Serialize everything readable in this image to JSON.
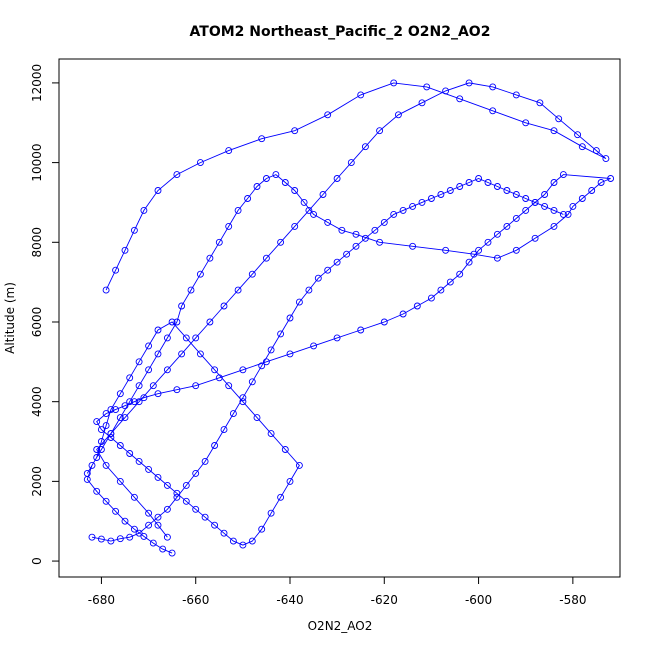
{
  "chart_data": {
    "type": "line",
    "title": "ATOM2 Northeast_Pacific_2 O2N2_AO2",
    "xlabel": "O2N2_AO2",
    "ylabel": "Altitude (m)",
    "xlim": [
      -689,
      -570
    ],
    "ylim": [
      -400,
      12600
    ],
    "xticks": [
      -680,
      -660,
      -640,
      -620,
      -600,
      -580
    ],
    "yticks": [
      0,
      2000,
      4000,
      6000,
      8000,
      10000,
      12000
    ],
    "grid": false,
    "legend": "none",
    "colors": {
      "series": "#0000ff",
      "axis": "#000000",
      "background": "#ffffff"
    },
    "markers": "open-circle",
    "series": [
      {
        "x": [
          -665,
          -667,
          -669,
          -671,
          -673,
          -675,
          -677,
          -679,
          -681,
          -683,
          -682,
          -680,
          -678,
          -676,
          -674,
          -672,
          -670,
          -668,
          -666,
          -664,
          -663,
          -661,
          -659,
          -657,
          -655,
          -653,
          -651,
          -649,
          -647,
          -645,
          -643,
          -641,
          -639,
          -637,
          -635,
          -632,
          -629,
          -626,
          -621,
          -614,
          -607,
          -601,
          -596,
          -592,
          -588,
          -584,
          -581,
          -580,
          -578,
          -576,
          -574,
          -572,
          -582,
          -584,
          -586,
          -588,
          -590,
          -592,
          -594,
          -596,
          -598,
          -600,
          -602,
          -604,
          -606,
          -608,
          -610,
          -613,
          -616,
          -620,
          -625,
          -630,
          -635,
          -640,
          -645,
          -650,
          -655,
          -660,
          -664,
          -668,
          -671,
          -673,
          -675,
          -677,
          -679,
          -681,
          -680,
          -678,
          -676,
          -674,
          -672,
          -670,
          -668,
          -666,
          -664,
          -662,
          -660,
          -658,
          -656,
          -654,
          -652,
          -650,
          -648,
          -646,
          -644,
          -642,
          -640,
          -638,
          -641,
          -644,
          -647,
          -650,
          -653,
          -656,
          -659,
          -662,
          -665,
          -668,
          -670,
          -672,
          -674,
          -676,
          -678,
          -679,
          -680,
          -681,
          -683
        ],
        "y": [
          200,
          300,
          450,
          620,
          800,
          1000,
          1250,
          1500,
          1750,
          2050,
          2400,
          2800,
          3200,
          3600,
          4000,
          4400,
          4800,
          5200,
          5600,
          6000,
          6400,
          6800,
          7200,
          7600,
          8000,
          8400,
          8800,
          9100,
          9400,
          9600,
          9700,
          9500,
          9300,
          9000,
          8700,
          8500,
          8300,
          8200,
          8000,
          7900,
          7800,
          7700,
          7600,
          7800,
          8100,
          8400,
          8700,
          8900,
          9100,
          9300,
          9500,
          9600,
          9700,
          9500,
          9200,
          9000,
          8800,
          8600,
          8400,
          8200,
          8000,
          7800,
          7500,
          7200,
          7000,
          6800,
          6600,
          6400,
          6200,
          6000,
          5800,
          5600,
          5400,
          5200,
          5000,
          4800,
          4600,
          4400,
          4300,
          4200,
          4100,
          4000,
          3900,
          3800,
          3700,
          3500,
          3300,
          3100,
          2900,
          2700,
          2500,
          2300,
          2100,
          1900,
          1700,
          1500,
          1300,
          1100,
          900,
          700,
          500,
          400,
          500,
          800,
          1200,
          1600,
          2000,
          2400,
          2800,
          3200,
          3600,
          4000,
          4400,
          4800,
          5200,
          5600,
          6000,
          5800,
          5400,
          5000,
          4600,
          4200,
          3800,
          3400,
          3000,
          2600,
          2200
        ]
      },
      {
        "x": [
          -666,
          -668,
          -670,
          -673,
          -676,
          -679,
          -681,
          -678,
          -675,
          -672,
          -669,
          -666,
          -663,
          -660,
          -657,
          -654,
          -651,
          -648,
          -645,
          -642,
          -639,
          -636,
          -633,
          -630,
          -627,
          -624,
          -621,
          -617,
          -612,
          -607,
          -602,
          -597,
          -592,
          -587,
          -583,
          -579,
          -575,
          -573,
          -578,
          -584,
          -590,
          -597,
          -604,
          -611,
          -618,
          -625,
          -632,
          -639,
          -646,
          -653,
          -659,
          -664,
          -668,
          -671,
          -673,
          -675,
          -677,
          -679
        ],
        "y": [
          600,
          900,
          1200,
          1600,
          2000,
          2400,
          2800,
          3200,
          3600,
          4000,
          4400,
          4800,
          5200,
          5600,
          6000,
          6400,
          6800,
          7200,
          7600,
          8000,
          8400,
          8800,
          9200,
          9600,
          10000,
          10400,
          10800,
          11200,
          11500,
          11800,
          12000,
          11900,
          11700,
          11500,
          11100,
          10700,
          10300,
          10100,
          10400,
          10800,
          11000,
          11300,
          11600,
          11900,
          12000,
          11700,
          11200,
          10800,
          10600,
          10300,
          10000,
          9700,
          9300,
          8800,
          8300,
          7800,
          7300,
          6800
        ]
      },
      {
        "x": [
          -682,
          -680,
          -678,
          -676,
          -674,
          -672,
          -670,
          -668,
          -666,
          -664,
          -662,
          -660,
          -658,
          -656,
          -654,
          -652,
          -650,
          -648,
          -646,
          -644,
          -642,
          -640,
          -638,
          -636,
          -634,
          -632,
          -630,
          -628,
          -626,
          -624,
          -622,
          -620,
          -618,
          -616,
          -614,
          -612,
          -610,
          -608,
          -606,
          -604,
          -602,
          -600,
          -598,
          -596,
          -594,
          -592,
          -590,
          -588,
          -586,
          -584,
          -582
        ],
        "y": [
          600,
          550,
          500,
          560,
          600,
          700,
          900,
          1100,
          1300,
          1600,
          1900,
          2200,
          2500,
          2900,
          3300,
          3700,
          4100,
          4500,
          4900,
          5300,
          5700,
          6100,
          6500,
          6800,
          7100,
          7300,
          7500,
          7700,
          7900,
          8100,
          8300,
          8500,
          8700,
          8800,
          8900,
          9000,
          9100,
          9200,
          9300,
          9400,
          9500,
          9600,
          9500,
          9400,
          9300,
          9200,
          9100,
          9000,
          8900,
          8800,
          8700
        ]
      }
    ]
  }
}
